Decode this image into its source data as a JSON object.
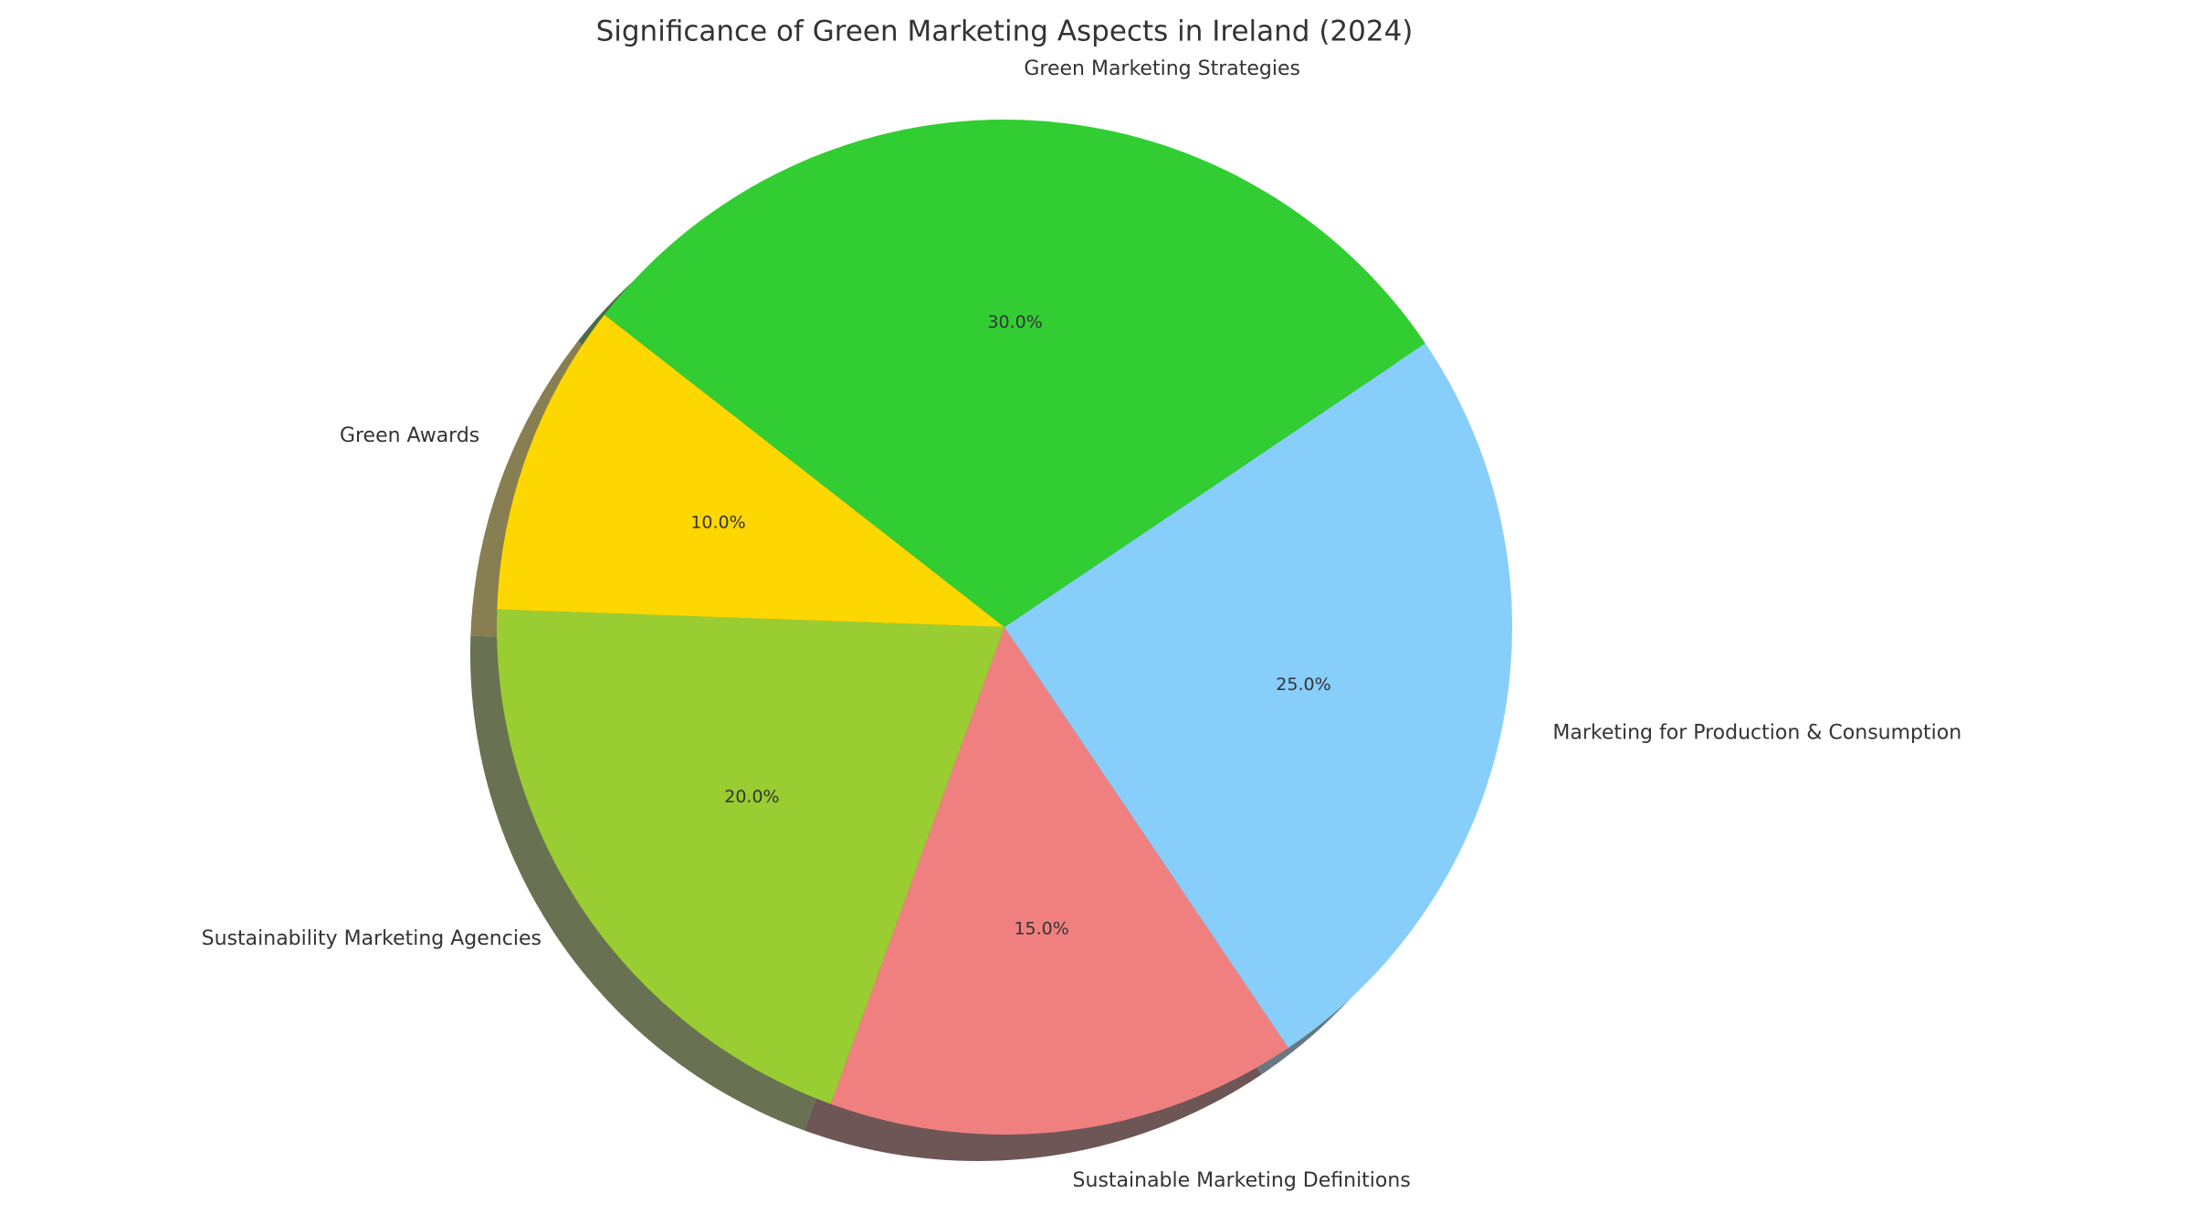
{
  "chart_data": {
    "type": "pie",
    "title": "Significance of Green Marketing Aspects in Ireland (2024)",
    "categories": [
      "Green Awards",
      "Sustainability Marketing Agencies",
      "Sustainable Marketing Definitions",
      "Marketing for Production & Consumption",
      "Green Marketing Strategies"
    ],
    "values": [
      10,
      20,
      15,
      25,
      30
    ],
    "value_labels": [
      "10.0%",
      "20.0%",
      "15.0%",
      "25.0%",
      "30.0%"
    ],
    "colors": [
      "#ffd700",
      "#9acd32",
      "#f08080",
      "#87cefa",
      "#32cd32"
    ],
    "shadow": true
  }
}
